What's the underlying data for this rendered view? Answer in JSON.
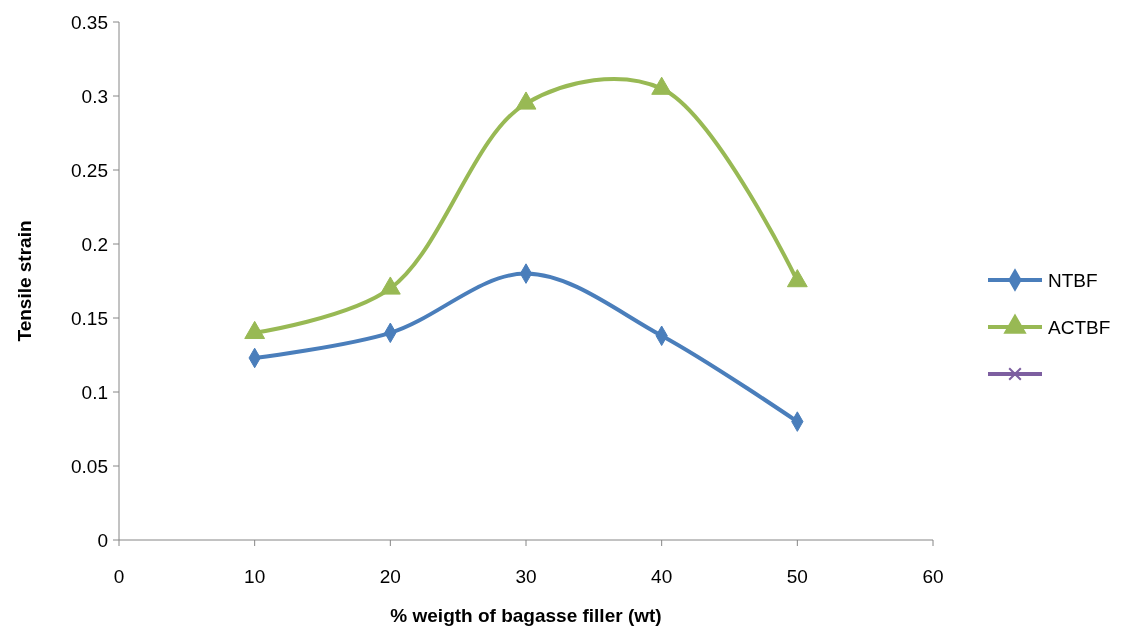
{
  "chart_data": {
    "type": "line",
    "xlabel": "% weigth of bagasse filler (wt)",
    "ylabel": "Tensile strain",
    "x": [
      10,
      20,
      30,
      40,
      50
    ],
    "series": [
      {
        "name": "NTBF",
        "color": "#4a7ebb",
        "marker": "diamond",
        "values": [
          0.123,
          0.14,
          0.18,
          0.138,
          0.08
        ]
      },
      {
        "name": "ACTBF",
        "color": "#98b954",
        "marker": "triangle",
        "values": [
          0.14,
          0.17,
          0.295,
          0.305,
          0.175
        ]
      },
      {
        "color": "#7d5fa0",
        "marker": "cross",
        "values": [
          null,
          null,
          null,
          null,
          null
        ]
      }
    ],
    "xlim": [
      0,
      60
    ],
    "xticks": [
      0,
      10,
      20,
      30,
      40,
      50,
      60
    ],
    "ylim": [
      0,
      0.35
    ],
    "yticks": [
      0,
      0.05,
      0.1,
      0.15,
      0.2,
      0.25,
      0.3,
      0.35
    ],
    "grid": false,
    "legend": "right"
  }
}
